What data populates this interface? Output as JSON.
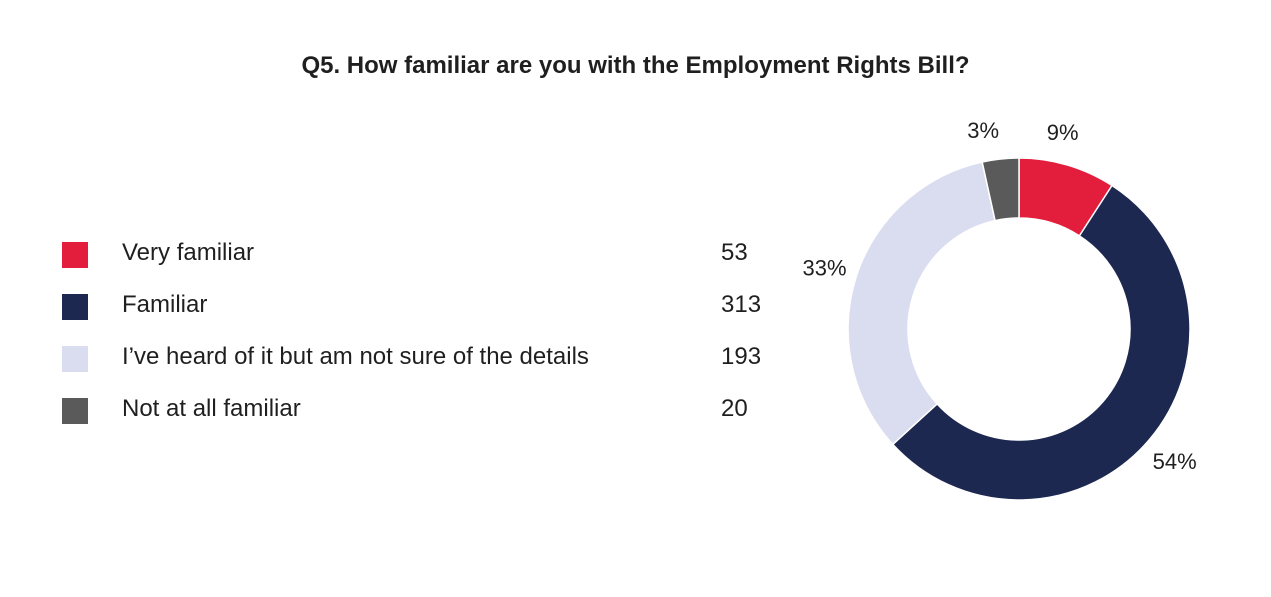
{
  "chart_data": {
    "type": "pie",
    "donut": true,
    "title": "Q5. How familiar are you with the Employment Rights Bill?",
    "slices": [
      {
        "label": "Very familiar",
        "value": 53,
        "percent_label": "9%",
        "color": "#E31E3C"
      },
      {
        "label": "Familiar",
        "value": 313,
        "percent_label": "54%",
        "color": "#1C2850"
      },
      {
        "label": "I’ve heard of it but am not sure of the details",
        "value": 193,
        "percent_label": "33%",
        "color": "#D9DDEF"
      },
      {
        "label": "Not at all familiar",
        "value": 20,
        "percent_label": "3%",
        "color": "#5A5A5A"
      }
    ],
    "legend_placement": "left"
  }
}
